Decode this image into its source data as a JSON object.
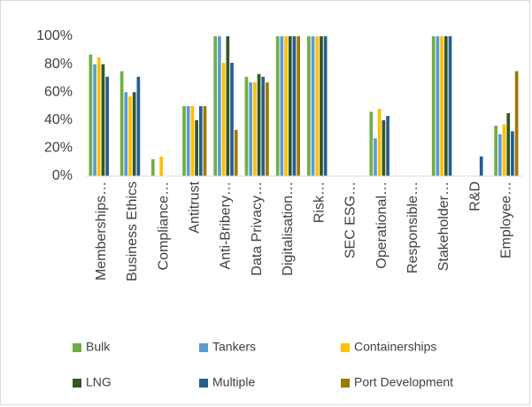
{
  "chart_data": {
    "type": "bar",
    "categories": [
      "Memberships…",
      "Business Ethics",
      "Compliance…",
      "Antitrust",
      "Anti-Bribery…",
      "Data Privacy…",
      "Digitalisation…",
      "Risk…",
      "SEC ESG…",
      "Operational…",
      "Responsible…",
      "Stakeholder…",
      "R&D",
      "Employee…"
    ],
    "series": [
      {
        "name": "Bulk",
        "color": "#70ad47",
        "values": [
          87,
          75,
          12,
          50,
          100,
          71,
          100,
          100,
          0,
          46,
          0,
          100,
          0,
          36
        ]
      },
      {
        "name": "Tankers",
        "color": "#5b9bd5",
        "values": [
          80,
          60,
          0,
          50,
          100,
          67,
          100,
          100,
          0,
          27,
          0,
          100,
          0,
          30
        ]
      },
      {
        "name": "Containerships",
        "color": "#ffc000",
        "values": [
          85,
          57,
          14,
          50,
          81,
          67,
          100,
          100,
          0,
          48,
          0,
          100,
          0,
          37
        ]
      },
      {
        "name": "LNG",
        "color": "#375623",
        "values": [
          80,
          60,
          0,
          40,
          100,
          73,
          100,
          100,
          0,
          40,
          0,
          100,
          0,
          45
        ]
      },
      {
        "name": "Multiple",
        "color": "#255e91",
        "values": [
          71,
          71,
          0,
          50,
          81,
          71,
          100,
          100,
          0,
          43,
          0,
          100,
          14,
          32
        ]
      },
      {
        "name": "Port Development",
        "color": "#9c7a00",
        "values": [
          0,
          0,
          0,
          50,
          33,
          67,
          100,
          0,
          0,
          0,
          0,
          0,
          0,
          75
        ]
      }
    ],
    "ylim": [
      0,
      100
    ],
    "yticks": [
      {
        "value": 0,
        "label": "0%"
      },
      {
        "value": 20,
        "label": "20%"
      },
      {
        "value": 40,
        "label": "40%"
      },
      {
        "value": 60,
        "label": "60%"
      },
      {
        "value": 80,
        "label": "80%"
      },
      {
        "value": 100,
        "label": "100%"
      }
    ],
    "grid": false,
    "legend": "bottom"
  }
}
